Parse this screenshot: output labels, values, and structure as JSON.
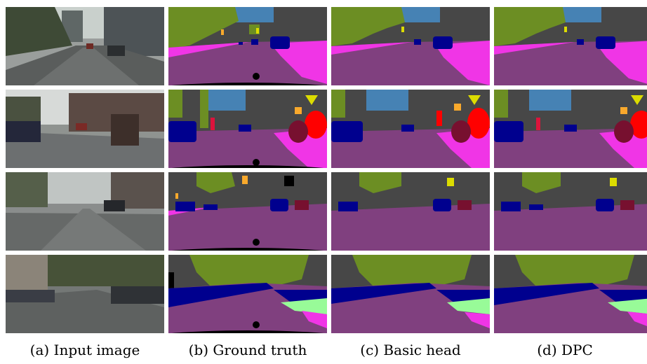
{
  "columns": [
    {
      "id": "a",
      "caption": "(a) Input image"
    },
    {
      "id": "b",
      "caption": "(b) Ground truth"
    },
    {
      "id": "c",
      "caption": "(c) Basic head"
    },
    {
      "id": "d",
      "caption": "(d) DPC"
    }
  ],
  "colors": {
    "road": "#80407f",
    "sidewalk": "#f035e6",
    "building": "#474747",
    "vegetation": "#6c8e23",
    "sky": "#4682b4",
    "car": "#00008e",
    "person": "#dc143c",
    "rider": "#ff0000",
    "bicycle": "#77102f",
    "traffic_sign": "#dcdc00",
    "traffic_light": "#f9a92c",
    "pole": "#999999",
    "terrain": "#98fb98",
    "ego_vehicle": "#000000"
  }
}
